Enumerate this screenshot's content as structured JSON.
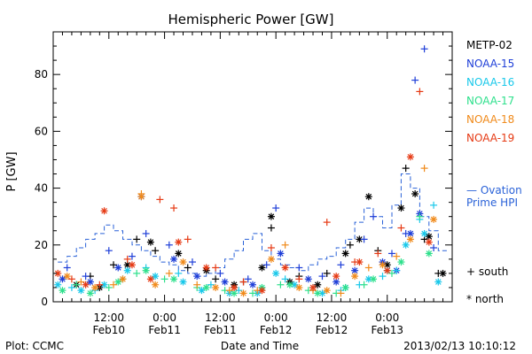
{
  "footer": {
    "plot_credit": "Plot: CCMC",
    "timestamp": "2013/02/13 10:10:12"
  },
  "chart_data": {
    "type": "scatter",
    "title": "Hemispheric Power [GW]",
    "xlabel": "Date and Time",
    "ylabel": "P [GW]",
    "xlim": [
      0,
      86
    ],
    "ylim": [
      0,
      95
    ],
    "x_unit": "hours since Feb10 00:00",
    "yticks": [
      0,
      20,
      40,
      60,
      80
    ],
    "xtick_labels": [
      {
        "x": 12,
        "line1": "12:00",
        "line2": "Feb10"
      },
      {
        "x": 24,
        "line1": "0:00",
        "line2": "Feb11"
      },
      {
        "x": 36,
        "line1": "12:00",
        "line2": "Feb11"
      },
      {
        "x": 48,
        "line1": "0:00",
        "line2": "Feb12"
      },
      {
        "x": 60,
        "line1": "12:00",
        "line2": "Feb12"
      },
      {
        "x": 72,
        "line1": "0:00",
        "line2": "Feb13"
      }
    ],
    "grid": false,
    "legend_position": "right",
    "satellites": [
      {
        "name": "METP-02",
        "color": "#000000"
      },
      {
        "name": "NOAA-15",
        "color": "#1f3fd8"
      },
      {
        "name": "NOAA-16",
        "color": "#19c8ea"
      },
      {
        "name": "NOAA-17",
        "color": "#2ee08c"
      },
      {
        "name": "NOAA-18",
        "color": "#f08a1a"
      },
      {
        "name": "NOAA-19",
        "color": "#e63a14"
      }
    ],
    "marker_legend": [
      {
        "symbol": "+",
        "label": "south"
      },
      {
        "symbol": "*",
        "label": "north"
      }
    ],
    "ovation": {
      "label_line1": "— Ovation",
      "label_line2": "Prime HPI",
      "color": "#2a62d8",
      "x": [
        2,
        4,
        6,
        8,
        10,
        12,
        14,
        16,
        18,
        20,
        22,
        24,
        26,
        28,
        30,
        32,
        34,
        36,
        38,
        40,
        42,
        44,
        46,
        48,
        50,
        52,
        54,
        56,
        58,
        60,
        62,
        64,
        66,
        68,
        70,
        72,
        74,
        76,
        78,
        80,
        82,
        84
      ],
      "y": [
        14,
        16,
        19,
        22,
        24,
        27,
        25,
        22,
        20,
        18,
        16,
        14,
        13,
        11,
        10,
        9,
        10,
        12,
        15,
        18,
        22,
        24,
        18,
        15,
        13,
        12,
        11,
        13,
        15,
        16,
        19,
        22,
        28,
        33,
        30,
        26,
        34,
        45,
        40,
        30,
        25,
        18
      ]
    },
    "series": [
      {
        "satellite": "METP-02",
        "hemisphere": "south",
        "color": "#000000",
        "marker": "+",
        "x": [
          8,
          13,
          18,
          22,
          29,
          35,
          41,
          47,
          53,
          59,
          64,
          70,
          76,
          80,
          83
        ],
        "y": [
          9,
          13,
          22,
          18,
          12,
          8,
          7,
          26,
          9,
          10,
          20,
          18,
          47,
          22,
          10
        ]
      },
      {
        "satellite": "METP-02",
        "hemisphere": "north",
        "color": "#000000",
        "marker": "*",
        "x": [
          5,
          10,
          16,
          21,
          27,
          33,
          39,
          45,
          47,
          51,
          57,
          63,
          66,
          68,
          72,
          75,
          78,
          81,
          84
        ],
        "y": [
          6,
          5,
          13,
          21,
          17,
          11,
          6,
          12,
          30,
          7,
          6,
          17,
          22,
          37,
          13,
          33,
          38,
          23,
          10
        ]
      },
      {
        "satellite": "NOAA-15",
        "hemisphere": "south",
        "color": "#1f3fd8",
        "marker": "+",
        "x": [
          3,
          7,
          12,
          17,
          20,
          25,
          30,
          36,
          42,
          46,
          48,
          53,
          58,
          62,
          67,
          69,
          73,
          76,
          78,
          80,
          82
        ],
        "y": [
          12,
          9,
          18,
          16,
          24,
          20,
          14,
          10,
          8,
          13,
          33,
          12,
          9,
          13,
          22,
          30,
          17,
          24,
          78,
          89,
          19
        ]
      },
      {
        "satellite": "NOAA-15",
        "hemisphere": "north",
        "color": "#1f3fd8",
        "marker": "*",
        "x": [
          2,
          8,
          14,
          19,
          26,
          31,
          37,
          43,
          49,
          55,
          61,
          65,
          71,
          74,
          77,
          79
        ],
        "y": [
          8,
          7,
          12,
          37,
          15,
          9,
          7,
          6,
          17,
          8,
          7,
          11,
          14,
          11,
          24,
          31
        ]
      },
      {
        "satellite": "NOAA-16",
        "hemisphere": "south",
        "color": "#19c8ea",
        "marker": "+",
        "x": [
          4,
          9,
          15,
          20,
          27,
          34,
          40,
          45,
          50,
          56,
          62,
          66,
          71,
          74,
          79,
          82
        ],
        "y": [
          5,
          4,
          8,
          12,
          10,
          6,
          4,
          5,
          8,
          5,
          4,
          6,
          9,
          11,
          29,
          34
        ]
      },
      {
        "satellite": "NOAA-16",
        "hemisphere": "north",
        "color": "#19c8ea",
        "marker": "*",
        "x": [
          1,
          6,
          11,
          16,
          22,
          28,
          32,
          38,
          44,
          48,
          52,
          58,
          63,
          68,
          72,
          76,
          80,
          83
        ],
        "y": [
          6,
          4,
          6,
          11,
          9,
          7,
          4,
          3,
          3,
          10,
          6,
          3,
          5,
          8,
          11,
          20,
          24,
          7
        ]
      },
      {
        "satellite": "NOAA-17",
        "hemisphere": "south",
        "color": "#2ee08c",
        "marker": "+",
        "x": [
          5,
          12,
          18,
          24,
          31,
          37,
          43,
          49,
          55,
          61,
          67,
          73,
          79
        ],
        "y": [
          6,
          5,
          10,
          8,
          5,
          4,
          3,
          6,
          4,
          3,
          6,
          10,
          30
        ]
      },
      {
        "satellite": "NOAA-17",
        "hemisphere": "north",
        "color": "#2ee08c",
        "marker": "*",
        "x": [
          2,
          8,
          14,
          20,
          26,
          33,
          39,
          45,
          51,
          57,
          63,
          69,
          75,
          81
        ],
        "y": [
          4,
          3,
          7,
          11,
          8,
          5,
          3,
          5,
          6,
          3,
          5,
          8,
          14,
          17
        ]
      },
      {
        "satellite": "NOAA-18",
        "hemisphere": "south",
        "color": "#f08a1a",
        "marker": "+",
        "x": [
          6,
          13,
          19,
          25,
          31,
          38,
          44,
          50,
          56,
          62,
          68,
          74,
          80
        ],
        "y": [
          7,
          6,
          38,
          10,
          6,
          4,
          4,
          20,
          4,
          3,
          12,
          16,
          47
        ]
      },
      {
        "satellite": "NOAA-18",
        "hemisphere": "north",
        "color": "#f08a1a",
        "marker": "*",
        "x": [
          3,
          9,
          15,
          19,
          22,
          28,
          35,
          41,
          47,
          53,
          59,
          65,
          71,
          77,
          82
        ],
        "y": [
          9,
          5,
          8,
          37,
          6,
          14,
          5,
          3,
          15,
          5,
          4,
          9,
          13,
          22,
          29
        ]
      },
      {
        "satellite": "NOAA-19",
        "hemisphere": "south",
        "color": "#e63a14",
        "marker": "+",
        "x": [
          4,
          10,
          16,
          23,
          26,
          29,
          35,
          41,
          47,
          53,
          59,
          65,
          70,
          75,
          79
        ],
        "y": [
          8,
          6,
          15,
          36,
          33,
          22,
          12,
          7,
          19,
          8,
          28,
          14,
          17,
          26,
          74
        ]
      },
      {
        "satellite": "NOAA-19",
        "hemisphere": "north",
        "color": "#e63a14",
        "marker": "*",
        "x": [
          1,
          7,
          11,
          17,
          21,
          27,
          33,
          39,
          45,
          50,
          56,
          61,
          66,
          72,
          77,
          81
        ],
        "y": [
          10,
          6,
          32,
          13,
          8,
          21,
          12,
          5,
          4,
          12,
          5,
          9,
          14,
          11,
          51,
          21
        ]
      }
    ]
  }
}
